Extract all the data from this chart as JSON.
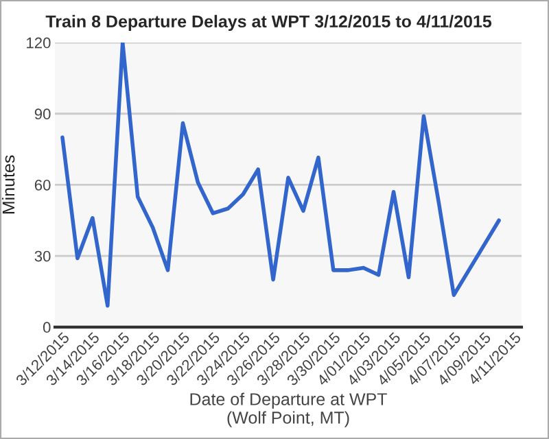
{
  "chart_data": {
    "type": "line",
    "title": "Train 8 Departure Delays at WPT 3/12/2015 to 4/11/2015",
    "xlabel": "Date of Departure at WPT\n(Wolf Point, MT)",
    "ylabel": "Minutes",
    "x": [
      "2015-03-12",
      "2015-03-13",
      "2015-03-14",
      "2015-03-15",
      "2015-03-16",
      "2015-03-17",
      "2015-03-18",
      "2015-03-19",
      "2015-03-20",
      "2015-03-21",
      "2015-03-22",
      "2015-03-23",
      "2015-03-24",
      "2015-03-25",
      "2015-03-26",
      "2015-03-27",
      "2015-03-28",
      "2015-03-29",
      "2015-03-30",
      "2015-03-31",
      "2015-04-01",
      "2015-04-02",
      "2015-04-03",
      "2015-04-04",
      "2015-04-05",
      "2015-04-06",
      "2015-04-07",
      "2015-04-08",
      "2015-04-09",
      "2015-04-10"
    ],
    "series": [
      {
        "color": "#3366cc",
        "values": [
          80,
          29,
          46,
          9,
          120,
          55,
          42,
          24,
          86,
          61,
          48,
          50,
          56,
          66.5,
          20,
          63,
          49,
          71.5,
          24,
          24,
          25,
          22,
          57,
          21,
          89,
          52.5,
          13.5,
          24,
          34.5,
          45
        ]
      }
    ],
    "xlim": [
      "2015-03-11T12:00",
      "2015-04-11T12:00"
    ],
    "xticks": [
      {
        "value": "2015-03-12",
        "label": "3/12/2015"
      },
      {
        "value": "2015-03-14",
        "label": "3/14/2015"
      },
      {
        "value": "2015-03-16",
        "label": "3/16/2015"
      },
      {
        "value": "2015-03-18",
        "label": "3/18/2015"
      },
      {
        "value": "2015-03-20",
        "label": "3/20/2015"
      },
      {
        "value": "2015-03-22",
        "label": "3/22/2015"
      },
      {
        "value": "2015-03-24",
        "label": "3/24/2015"
      },
      {
        "value": "2015-03-26",
        "label": "3/26/2015"
      },
      {
        "value": "2015-03-28",
        "label": "3/28/2015"
      },
      {
        "value": "2015-03-30",
        "label": "3/30/2015"
      },
      {
        "value": "2015-04-01",
        "label": "4/01/2015"
      },
      {
        "value": "2015-04-03",
        "label": "4/03/2015"
      },
      {
        "value": "2015-04-05",
        "label": "4/05/2015"
      },
      {
        "value": "2015-04-07",
        "label": "4/07/2015"
      },
      {
        "value": "2015-04-09",
        "label": "4/09/2015"
      },
      {
        "value": "2015-04-11",
        "label": "4/11/2015"
      }
    ],
    "ylim": [
      0,
      120
    ],
    "yticks": [
      0,
      30,
      60,
      90,
      120
    ],
    "grid": "y",
    "legend": false,
    "marker": "none",
    "line_style": "solid"
  }
}
